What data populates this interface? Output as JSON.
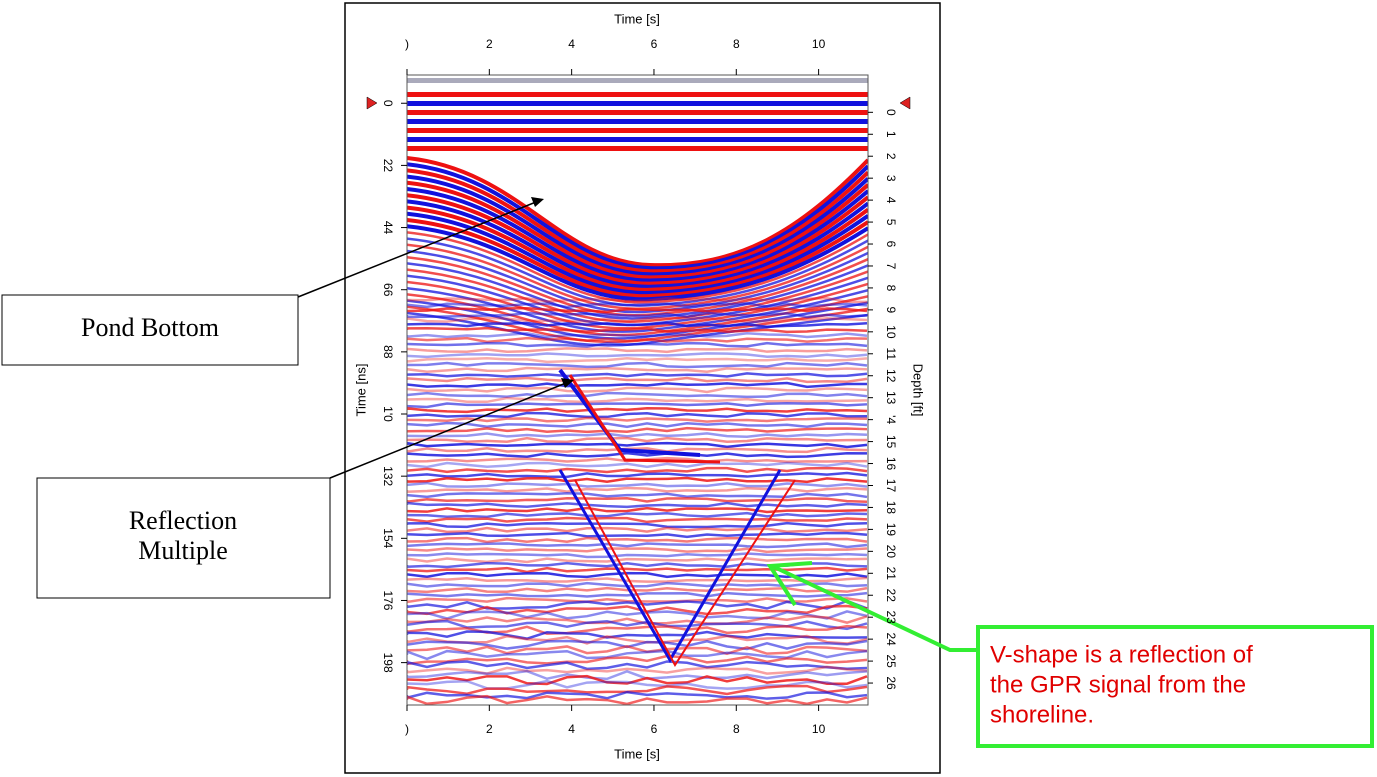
{
  "chart_data": {
    "type": "radargram",
    "x_label_top": "Time [s]",
    "x_label_bottom": "Time [s]",
    "y_label": "Time [ns]",
    "y2_label": "Depth [ft]",
    "xlim": [
      0,
      11.2
    ],
    "xticks_top": [
      {
        "value": 0,
        "label": ")"
      },
      2,
      4,
      6,
      8,
      10
    ],
    "xticks_bottom": [
      {
        "value": 0,
        "label": ")"
      },
      2,
      4,
      6,
      8,
      10
    ],
    "ylim": [
      -10,
      213
    ],
    "yticks": [
      0,
      22,
      44,
      66,
      88,
      {
        "value": 110,
        "label": "1'0"
      },
      132,
      154,
      176,
      198
    ],
    "y2lim": [
      -1.7,
      27
    ],
    "y2ticks": [
      0,
      1,
      2,
      3,
      4,
      5,
      6,
      7,
      8,
      9,
      10,
      11,
      12,
      13,
      {
        "value": 14,
        "label": "'4"
      },
      15,
      16,
      17,
      18,
      19,
      20,
      21,
      22,
      23,
      24,
      25,
      26
    ],
    "annotations": [
      {
        "lines": [
          "Pond Bottom"
        ]
      },
      {
        "lines": [
          "Reflection",
          "Multiple"
        ]
      },
      {
        "lines": [
          "V-shape is a reflection of",
          "the GPR signal from the",
          "shoreline."
        ]
      }
    ]
  }
}
